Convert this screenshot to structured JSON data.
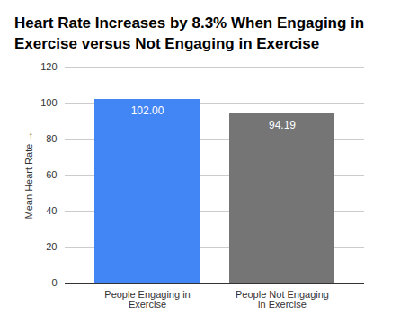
{
  "chart_data": {
    "type": "bar",
    "title": "Heart Rate Increases by 8.3% When Engaging in Exercise versus Not Engaging in Exercise",
    "y_label": "Mean Heart Rate",
    "categories": [
      "People Engaging in Exercise",
      "People Not Engaging in Exercise"
    ],
    "values": [
      102.0,
      94.19
    ],
    "value_labels": [
      "102.00",
      "94.19"
    ],
    "colors": [
      "#4285f4",
      "#757575"
    ],
    "ylim": [
      0,
      120
    ],
    "yticks": [
      0,
      20,
      40,
      60,
      80,
      100,
      120
    ],
    "grid": true,
    "data_labels": true
  }
}
